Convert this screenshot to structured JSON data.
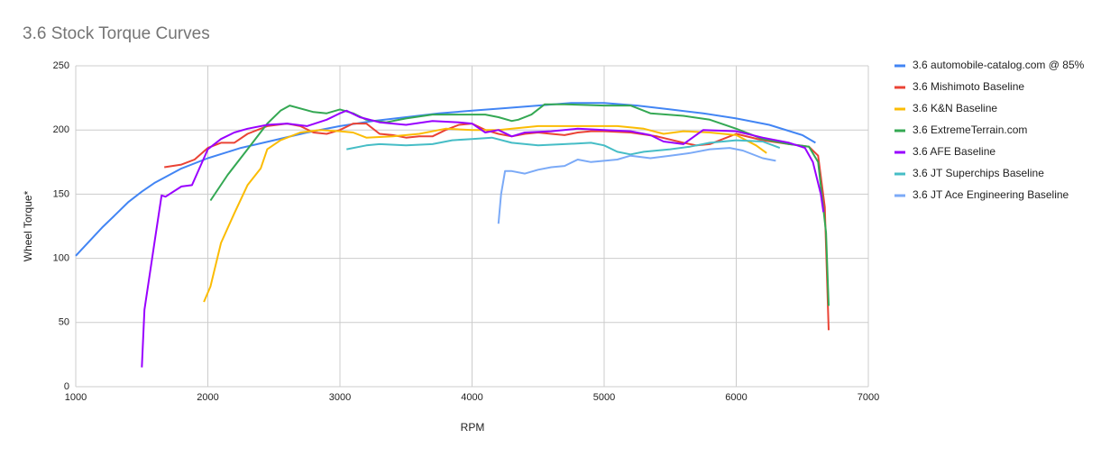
{
  "chart_data": {
    "type": "line",
    "title": "3.6 Stock Torque Curves",
    "x_label": "RPM",
    "y_label": "Wheel Torque*",
    "xlim": [
      1000,
      7000
    ],
    "xticks": [
      1000,
      2000,
      3000,
      4000,
      5000,
      6000,
      7000
    ],
    "ylim": [
      0,
      250
    ],
    "yticks": [
      0,
      50,
      100,
      150,
      200,
      250
    ],
    "grid": true,
    "legend": "right",
    "series": [
      {
        "name": "3.6 automobile-catalog.com @ 85%",
        "color": "#4285f4",
        "x": [
          1000,
          1100,
          1200,
          1300,
          1400,
          1500,
          1600,
          1800,
          2000,
          2250,
          2500,
          2750,
          3000,
          3250,
          3500,
          3750,
          4000,
          4250,
          4500,
          4750,
          5000,
          5250,
          5500,
          5750,
          6000,
          6250,
          6500,
          6600
        ],
        "values": [
          102,
          113,
          124,
          134,
          144,
          152,
          159,
          170,
          178,
          186,
          192,
          198,
          203,
          207,
          210,
          213,
          215,
          217,
          219,
          221,
          221,
          219,
          216,
          213,
          209,
          204,
          196,
          190
        ]
      },
      {
        "name": "3.6 Mishimoto Baseline",
        "color": "#ea4335",
        "x": [
          1670,
          1800,
          1900,
          2000,
          2100,
          2200,
          2300,
          2450,
          2600,
          2700,
          2800,
          2900,
          3000,
          3100,
          3200,
          3300,
          3400,
          3500,
          3600,
          3700,
          3800,
          3900,
          4000,
          4100,
          4200,
          4300,
          4400,
          4500,
          4600,
          4700,
          4800,
          4900,
          5000,
          5200,
          5400,
          5600,
          5700,
          5800,
          5900,
          6000,
          6200,
          6400,
          6550,
          6620,
          6670,
          6700
        ],
        "values": [
          171,
          173,
          177,
          186,
          190,
          190,
          197,
          203,
          205,
          203,
          198,
          197,
          200,
          205,
          205,
          197,
          196,
          194,
          195,
          195,
          200,
          204,
          205,
          200,
          197,
          195,
          197,
          198,
          197,
          196,
          198,
          199,
          199,
          198,
          195,
          190,
          188,
          189,
          193,
          197,
          192,
          189,
          187,
          180,
          140,
          44
        ]
      },
      {
        "name": "3.6 K&N Baseline",
        "color": "#fbbc04",
        "x": [
          1970,
          2020,
          2100,
          2200,
          2300,
          2400,
          2450,
          2550,
          2700,
          2850,
          3000,
          3100,
          3200,
          3400,
          3600,
          3800,
          4000,
          4200,
          4500,
          4800,
          5100,
          5300,
          5450,
          5600,
          5800,
          6000,
          6150,
          6230
        ],
        "values": [
          66,
          78,
          112,
          135,
          157,
          170,
          185,
          192,
          198,
          200,
          199,
          198,
          194,
          195,
          197,
          201,
          200,
          200,
          203,
          203,
          203,
          201,
          197,
          199,
          198,
          196,
          188,
          182
        ]
      },
      {
        "name": "3.6 ExtremeTerrain.com",
        "color": "#34a853",
        "x": [
          2020,
          2150,
          2300,
          2450,
          2550,
          2620,
          2800,
          2900,
          3000,
          3100,
          3200,
          3350,
          3500,
          3700,
          3900,
          4100,
          4200,
          4300,
          4350,
          4450,
          4550,
          4700,
          5000,
          5200,
          5350,
          5600,
          5800,
          6000,
          6200,
          6400,
          6550,
          6620,
          6680,
          6700
        ],
        "values": [
          145,
          165,
          185,
          205,
          215,
          219,
          214,
          213,
          216,
          213,
          208,
          206,
          209,
          212,
          212,
          212,
          210,
          207,
          208,
          212,
          220,
          220,
          219,
          219,
          213,
          211,
          208,
          201,
          193,
          189,
          187,
          175,
          120,
          63
        ]
      },
      {
        "name": "3.6 AFE Baseline",
        "color": "#9900ff",
        "x": [
          1500,
          1520,
          1600,
          1650,
          1680,
          1800,
          1880,
          2000,
          2100,
          2200,
          2300,
          2450,
          2600,
          2750,
          2900,
          3000,
          3050,
          3150,
          3300,
          3500,
          3700,
          3900,
          4000,
          4100,
          4200,
          4300,
          4400,
          4600,
          4800,
          5000,
          5200,
          5350,
          5450,
          5600,
          5750,
          6000,
          6200,
          6400,
          6520,
          6580,
          6640,
          6660
        ],
        "values": [
          15,
          60,
          115,
          149,
          148,
          156,
          157,
          185,
          193,
          198,
          201,
          204,
          205,
          203,
          208,
          213,
          215,
          210,
          206,
          204,
          207,
          206,
          205,
          198,
          200,
          195,
          198,
          199,
          201,
          200,
          199,
          196,
          191,
          189,
          200,
          199,
          194,
          190,
          186,
          175,
          150,
          136
        ]
      },
      {
        "name": "3.6 JT Superchips Baseline",
        "color": "#46bdc6",
        "x": [
          3050,
          3200,
          3300,
          3500,
          3700,
          3850,
          4000,
          4150,
          4300,
          4500,
          4700,
          4900,
          5000,
          5100,
          5200,
          5300,
          5500,
          5650,
          5800,
          6000,
          6200,
          6330
        ],
        "values": [
          185,
          188,
          189,
          188,
          189,
          192,
          193,
          194,
          190,
          188,
          189,
          190,
          188,
          183,
          181,
          183,
          185,
          187,
          190,
          192,
          191,
          186
        ]
      },
      {
        "name": "3.6 JT Ace Engineering Baseline",
        "color": "#7baaf7",
        "x": [
          4200,
          4220,
          4250,
          4300,
          4400,
          4500,
          4600,
          4700,
          4800,
          4900,
          5000,
          5100,
          5200,
          5350,
          5500,
          5650,
          5800,
          5950,
          6050,
          6200,
          6300
        ],
        "values": [
          127,
          150,
          168,
          168,
          166,
          169,
          171,
          172,
          177,
          175,
          176,
          177,
          180,
          178,
          180,
          182,
          185,
          186,
          184,
          178,
          176
        ]
      }
    ]
  }
}
